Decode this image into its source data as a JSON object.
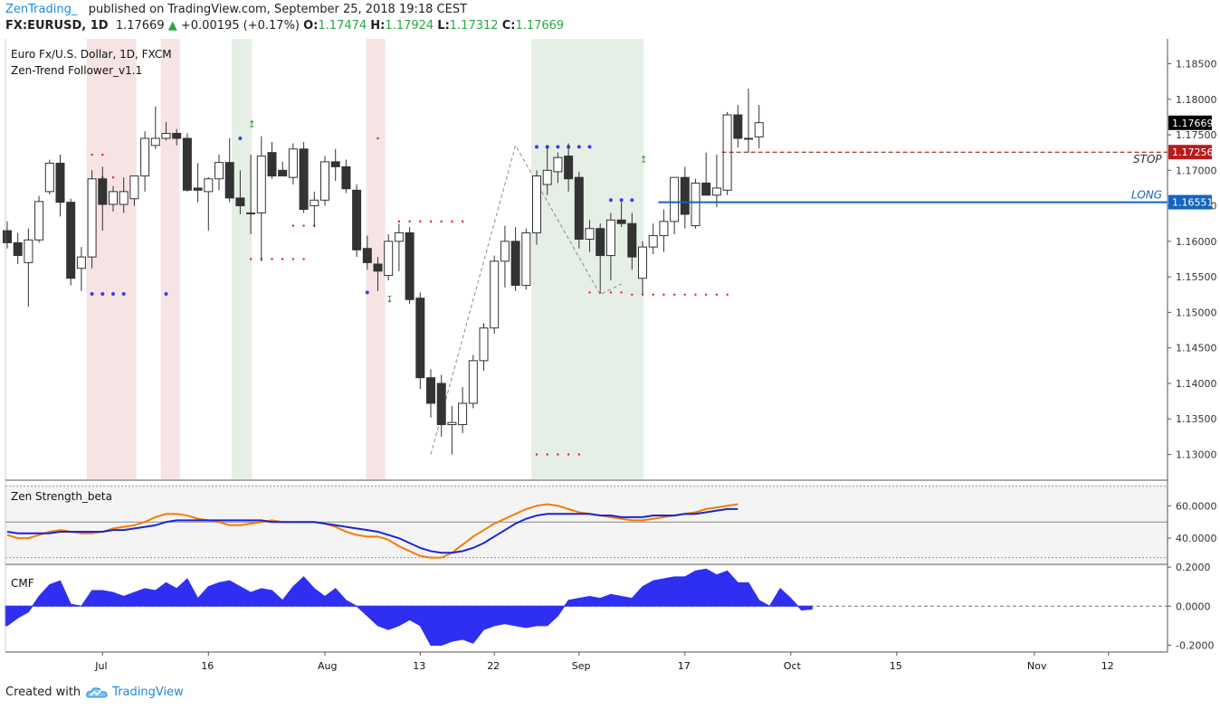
{
  "header": {
    "author": "ZenTrading_",
    "published": "published on TradingView.com, September 25, 2018 19:18 CEST",
    "symbol": "FX:EURUSD, 1D",
    "last": "1.17669",
    "arrow": "▲",
    "change": "+0.00195 (+0.17%)",
    "o_label": "O:",
    "o_value": "1.17474",
    "h_label": "H:",
    "h_value": "1.17924",
    "l_label": "L:",
    "l_value": "1.17312",
    "c_label": "C:",
    "c_value": "1.17669"
  },
  "footer": {
    "created_with": "Created with",
    "brand": "TradingView"
  },
  "colors": {
    "up_candle": "#ffffff",
    "down_candle": "#333333",
    "stop_line": "#8b0000",
    "long_line": "#1565c0",
    "orange_line": "#f57c00",
    "blue_line": "#1a24d6",
    "cmf_fill": "#2f2ff2",
    "red_zone": "#f6e3e3",
    "green_zone": "#e5efe6",
    "blue_dot": "#3b3bf5",
    "red_dot": "#e02020"
  },
  "chart_data": [
    {
      "type": "candlestick",
      "title": "Euro Fx/U.S. Dollar, 1D, FXCM",
      "indicator": "Zen-Trend Follower_v1.1",
      "ylim": [
        1.1265,
        1.1885
      ],
      "y_ticks": [
        "1.18500",
        "1.18000",
        "1.17500",
        "1.17000",
        "1.16500",
        "1.16000",
        "1.15500",
        "1.15000",
        "1.14500",
        "1.14000",
        "1.13500",
        "1.13000"
      ],
      "x_ticks": [
        {
          "label": "Jul",
          "index": 9
        },
        {
          "label": "16",
          "index": 19
        },
        {
          "label": "Aug",
          "index": 30
        },
        {
          "label": "13",
          "index": 39
        },
        {
          "label": "22",
          "index": 46
        },
        {
          "label": "Sep",
          "index": 54
        },
        {
          "label": "17",
          "index": 64
        },
        {
          "label": "Oct",
          "index": 74
        },
        {
          "label": "15",
          "index": 84
        },
        {
          "label": "Nov",
          "index": 97
        },
        {
          "label": "12",
          "index": 104
        }
      ],
      "candles": [
        {
          "o": 1.1615,
          "h": 1.1628,
          "l": 1.159,
          "c": 1.1598
        },
        {
          "o": 1.1598,
          "h": 1.1612,
          "l": 1.1568,
          "c": 1.158
        },
        {
          "o": 1.157,
          "h": 1.1618,
          "l": 1.1508,
          "c": 1.1602
        },
        {
          "o": 1.1602,
          "h": 1.1664,
          "l": 1.1598,
          "c": 1.1656
        },
        {
          "o": 1.167,
          "h": 1.1715,
          "l": 1.1666,
          "c": 1.171
        },
        {
          "o": 1.171,
          "h": 1.1722,
          "l": 1.1635,
          "c": 1.1655
        },
        {
          "o": 1.1655,
          "h": 1.166,
          "l": 1.1538,
          "c": 1.1548
        },
        {
          "o": 1.1562,
          "h": 1.1592,
          "l": 1.153,
          "c": 1.1578
        },
        {
          "o": 1.1578,
          "h": 1.17,
          "l": 1.1562,
          "c": 1.1688
        },
        {
          "o": 1.1688,
          "h": 1.1705,
          "l": 1.1615,
          "c": 1.1652
        },
        {
          "o": 1.1652,
          "h": 1.1678,
          "l": 1.1642,
          "c": 1.167
        },
        {
          "o": 1.1652,
          "h": 1.169,
          "l": 1.164,
          "c": 1.167
        },
        {
          "o": 1.166,
          "h": 1.169,
          "l": 1.165,
          "c": 1.1692
        },
        {
          "o": 1.1692,
          "h": 1.1755,
          "l": 1.167,
          "c": 1.1745
        },
        {
          "o": 1.1735,
          "h": 1.179,
          "l": 1.173,
          "c": 1.1745
        },
        {
          "o": 1.1745,
          "h": 1.1768,
          "l": 1.1742,
          "c": 1.1752
        },
        {
          "o": 1.1752,
          "h": 1.1758,
          "l": 1.1735,
          "c": 1.1745
        },
        {
          "o": 1.1745,
          "h": 1.1752,
          "l": 1.167,
          "c": 1.1672
        },
        {
          "o": 1.1675,
          "h": 1.171,
          "l": 1.1655,
          "c": 1.1672
        },
        {
          "o": 1.167,
          "h": 1.169,
          "l": 1.1615,
          "c": 1.1688
        },
        {
          "o": 1.1688,
          "h": 1.1722,
          "l": 1.1672,
          "c": 1.1711
        },
        {
          "o": 1.1711,
          "h": 1.1745,
          "l": 1.1655,
          "c": 1.1661
        },
        {
          "o": 1.1661,
          "h": 1.17,
          "l": 1.1638,
          "c": 1.165
        },
        {
          "o": 1.164,
          "h": 1.1722,
          "l": 1.161,
          "c": 1.164
        },
        {
          "o": 1.164,
          "h": 1.1748,
          "l": 1.1572,
          "c": 1.172
        },
        {
          "o": 1.1725,
          "h": 1.174,
          "l": 1.1688,
          "c": 1.1692
        },
        {
          "o": 1.17,
          "h": 1.1712,
          "l": 1.1692,
          "c": 1.1692
        },
        {
          "o": 1.169,
          "h": 1.1738,
          "l": 1.168,
          "c": 1.173
        },
        {
          "o": 1.173,
          "h": 1.174,
          "l": 1.164,
          "c": 1.1645
        },
        {
          "o": 1.165,
          "h": 1.167,
          "l": 1.162,
          "c": 1.1658
        },
        {
          "o": 1.1658,
          "h": 1.172,
          "l": 1.165,
          "c": 1.1712
        },
        {
          "o": 1.1712,
          "h": 1.173,
          "l": 1.1685,
          "c": 1.1705
        },
        {
          "o": 1.1705,
          "h": 1.1715,
          "l": 1.1668,
          "c": 1.1674
        },
        {
          "o": 1.1672,
          "h": 1.168,
          "l": 1.1578,
          "c": 1.1588
        },
        {
          "o": 1.159,
          "h": 1.1608,
          "l": 1.156,
          "c": 1.157
        },
        {
          "o": 1.1568,
          "h": 1.1578,
          "l": 1.153,
          "c": 1.1558
        },
        {
          "o": 1.1552,
          "h": 1.161,
          "l": 1.1545,
          "c": 1.16
        },
        {
          "o": 1.16,
          "h": 1.1625,
          "l": 1.1558,
          "c": 1.1612
        },
        {
          "o": 1.1612,
          "h": 1.162,
          "l": 1.1512,
          "c": 1.1518
        },
        {
          "o": 1.152,
          "h": 1.1528,
          "l": 1.1392,
          "c": 1.1408
        },
        {
          "o": 1.1408,
          "h": 1.142,
          "l": 1.1352,
          "c": 1.1372
        },
        {
          "o": 1.14,
          "h": 1.1412,
          "l": 1.1325,
          "c": 1.1342
        },
        {
          "o": 1.1342,
          "h": 1.1368,
          "l": 1.13,
          "c": 1.1345
        },
        {
          "o": 1.1342,
          "h": 1.1395,
          "l": 1.133,
          "c": 1.1372
        },
        {
          "o": 1.1372,
          "h": 1.144,
          "l": 1.1365,
          "c": 1.1432
        },
        {
          "o": 1.1432,
          "h": 1.1485,
          "l": 1.1418,
          "c": 1.1478
        },
        {
          "o": 1.1478,
          "h": 1.158,
          "l": 1.147,
          "c": 1.1572
        },
        {
          "o": 1.1572,
          "h": 1.1622,
          "l": 1.1535,
          "c": 1.16
        },
        {
          "o": 1.16,
          "h": 1.162,
          "l": 1.153,
          "c": 1.1538
        },
        {
          "o": 1.1538,
          "h": 1.1618,
          "l": 1.1532,
          "c": 1.1612
        },
        {
          "o": 1.1612,
          "h": 1.17,
          "l": 1.1595,
          "c": 1.1692
        },
        {
          "o": 1.168,
          "h": 1.1735,
          "l": 1.1665,
          "c": 1.17
        },
        {
          "o": 1.1698,
          "h": 1.1725,
          "l": 1.1682,
          "c": 1.1718
        },
        {
          "o": 1.172,
          "h": 1.1738,
          "l": 1.167,
          "c": 1.1688
        },
        {
          "o": 1.169,
          "h": 1.1698,
          "l": 1.159,
          "c": 1.1603
        },
        {
          "o": 1.1603,
          "h": 1.163,
          "l": 1.1585,
          "c": 1.1618
        },
        {
          "o": 1.1618,
          "h": 1.1625,
          "l": 1.153,
          "c": 1.158
        },
        {
          "o": 1.158,
          "h": 1.164,
          "l": 1.1545,
          "c": 1.163
        },
        {
          "o": 1.163,
          "h": 1.1655,
          "l": 1.162,
          "c": 1.1625
        },
        {
          "o": 1.1625,
          "h": 1.164,
          "l": 1.156,
          "c": 1.1578
        },
        {
          "o": 1.1548,
          "h": 1.16,
          "l": 1.1525,
          "c": 1.1592
        },
        {
          "o": 1.1592,
          "h": 1.1625,
          "l": 1.1582,
          "c": 1.1608
        },
        {
          "o": 1.1608,
          "h": 1.1645,
          "l": 1.1585,
          "c": 1.1628
        },
        {
          "o": 1.1628,
          "h": 1.169,
          "l": 1.161,
          "c": 1.169
        },
        {
          "o": 1.169,
          "h": 1.1705,
          "l": 1.1618,
          "c": 1.1638
        },
        {
          "o": 1.1622,
          "h": 1.1688,
          "l": 1.1618,
          "c": 1.1682
        },
        {
          "o": 1.1682,
          "h": 1.1725,
          "l": 1.1665,
          "c": 1.1665
        },
        {
          "o": 1.1665,
          "h": 1.1722,
          "l": 1.1648,
          "c": 1.1675
        },
        {
          "o": 1.1672,
          "h": 1.1782,
          "l": 1.1665,
          "c": 1.1778
        },
        {
          "o": 1.1778,
          "h": 1.1792,
          "l": 1.1732,
          "c": 1.1745
        },
        {
          "o": 1.1745,
          "h": 1.1815,
          "l": 1.1725,
          "c": 1.1745
        },
        {
          "o": 1.1747,
          "h": 1.1792,
          "l": 1.1731,
          "c": 1.1767
        }
      ],
      "levels": [
        {
          "name": "STOP",
          "value": 1.17256,
          "label": "1.17256",
          "style": "dashed"
        },
        {
          "name": "LONG",
          "value": 1.16551,
          "label": "1.16551",
          "style": "solid"
        },
        {
          "name": "last",
          "value": 1.17669,
          "label": "1.17669"
        }
      ],
      "shaded_zones": [
        {
          "start": 8,
          "end": 11.7,
          "color": "red"
        },
        {
          "start": 15,
          "end": 15.8,
          "color": "red"
        },
        {
          "start": 21.7,
          "end": 22.6,
          "color": "green"
        },
        {
          "start": 34.4,
          "end": 35.2,
          "color": "red"
        },
        {
          "start": 50,
          "end": 59.6,
          "color": "green"
        }
      ],
      "blue_dot_runs": [
        {
          "from": 8,
          "to": 11,
          "value": 1.1526
        },
        {
          "from": 15,
          "to": 15,
          "value": 1.1526
        },
        {
          "from": 22,
          "to": 22,
          "value": 1.1745
        },
        {
          "from": 34,
          "to": 34,
          "value": 1.1528
        },
        {
          "from": 50,
          "to": 55,
          "value": 1.1733
        },
        {
          "from": 57,
          "to": 59,
          "value": 1.1658
        }
      ],
      "red_dot_runs": [
        {
          "from": 8,
          "to": 9,
          "value": 1.1722
        },
        {
          "from": 9,
          "to": 10,
          "value": 1.169
        },
        {
          "from": 23,
          "to": 28,
          "value": 1.1575
        },
        {
          "from": 27,
          "to": 29,
          "value": 1.1622
        },
        {
          "from": 35,
          "to": 35,
          "value": 1.1745
        },
        {
          "from": 37,
          "to": 43,
          "value": 1.1628
        },
        {
          "from": 50,
          "to": 54,
          "value": 1.13
        },
        {
          "from": 55,
          "to": 58,
          "value": 1.1528
        },
        {
          "from": 59,
          "to": 68,
          "value": 1.1525
        }
      ],
      "signals": [
        {
          "index": 23,
          "symbol": "↥",
          "value": 1.1761,
          "color": "green"
        },
        {
          "index": 36,
          "symbol": "↧",
          "value": 1.1514,
          "color": "green"
        },
        {
          "index": 60,
          "symbol": "↥",
          "value": 1.1711,
          "color": "green"
        }
      ],
      "zigzag": [
        {
          "index": 40,
          "value": 1.13
        },
        {
          "index": 48,
          "value": 1.1735
        },
        {
          "index": 56,
          "value": 1.1525
        },
        {
          "index": 58,
          "value": 1.154
        }
      ]
    },
    {
      "type": "line",
      "title": "Zen Strength_beta",
      "ylim": [
        25,
        73
      ],
      "y_ticks": [
        "60.0000",
        "40.0000"
      ],
      "reference_lines": [
        50,
        28,
        72
      ],
      "series": [
        {
          "name": "orange",
          "color": "#f57c00",
          "values": [
            42,
            40,
            40,
            42,
            44,
            45,
            44,
            43,
            43,
            44,
            46,
            47,
            48,
            50,
            53,
            55,
            55,
            54,
            52,
            51,
            50,
            48,
            48,
            49,
            50,
            51,
            50,
            50,
            50,
            50,
            49,
            47,
            44,
            42,
            41,
            41,
            39,
            35,
            32,
            29,
            28,
            28,
            31,
            36,
            41,
            45,
            49,
            52,
            55,
            58,
            60,
            61,
            60,
            58,
            56,
            55,
            54,
            53,
            52,
            51,
            51,
            52,
            53,
            54,
            55,
            56,
            58,
            59,
            60,
            61
          ]
        },
        {
          "name": "blue",
          "color": "#1a24d6",
          "values": [
            44,
            43,
            43,
            43,
            43,
            44,
            44,
            44,
            44,
            44,
            45,
            45,
            46,
            47,
            48,
            50,
            51,
            51,
            51,
            51,
            51,
            51,
            51,
            51,
            51,
            50,
            50,
            50,
            50,
            50,
            49,
            48,
            47,
            46,
            45,
            44,
            42,
            40,
            37,
            34,
            32,
            31,
            31,
            32,
            34,
            37,
            41,
            45,
            49,
            52,
            54,
            55,
            55,
            55,
            55,
            55,
            54,
            54,
            53,
            53,
            53,
            54,
            54,
            54,
            55,
            55,
            56,
            57,
            58,
            58
          ]
        }
      ]
    },
    {
      "type": "area",
      "title": "CMF",
      "ylim": [
        -0.235,
        0.205
      ],
      "y_ticks": [
        "0.2000",
        "0.0000",
        "-0.2000"
      ],
      "values": [
        -0.1,
        -0.06,
        -0.03,
        0.05,
        0.11,
        0.13,
        0.01,
        0.0,
        0.08,
        0.08,
        0.07,
        0.05,
        0.07,
        0.09,
        0.08,
        0.12,
        0.09,
        0.14,
        0.04,
        0.1,
        0.12,
        0.13,
        0.1,
        0.07,
        0.09,
        0.08,
        0.03,
        0.1,
        0.15,
        0.09,
        0.05,
        0.09,
        0.03,
        0.0,
        -0.05,
        -0.1,
        -0.12,
        -0.1,
        -0.07,
        -0.1,
        -0.2,
        -0.2,
        -0.18,
        -0.17,
        -0.19,
        -0.12,
        -0.1,
        -0.09,
        -0.1,
        -0.11,
        -0.1,
        -0.1,
        -0.05,
        0.03,
        0.04,
        0.05,
        0.04,
        0.06,
        0.05,
        0.04,
        0.1,
        0.13,
        0.14,
        0.15,
        0.15,
        0.18,
        0.19,
        0.16,
        0.18,
        0.12,
        0.12,
        0.03,
        0.0,
        0.09,
        0.04,
        -0.02,
        -0.015
      ]
    }
  ]
}
